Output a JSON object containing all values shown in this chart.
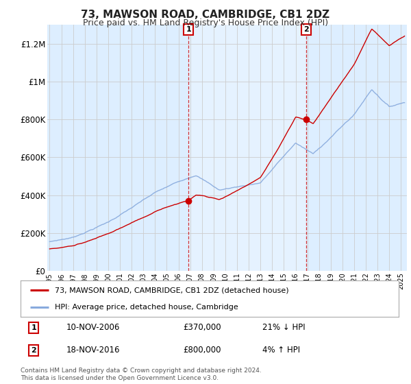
{
  "title": "73, MAWSON ROAD, CAMBRIDGE, CB1 2DZ",
  "subtitle": "Price paid vs. HM Land Registry's House Price Index (HPI)",
  "background_color": "#ffffff",
  "plot_bg_color": "#ddeeff",
  "ylim": [
    0,
    1300000
  ],
  "yticks": [
    0,
    200000,
    400000,
    600000,
    800000,
    1000000,
    1200000
  ],
  "ytick_labels": [
    "£0",
    "£200K",
    "£400K",
    "£600K",
    "£800K",
    "£1M",
    "£1.2M"
  ],
  "sale1_date_label": "10-NOV-2006",
  "sale1_price": 370000,
  "sale1_price_label": "£370,000",
  "sale1_hpi_label": "21% ↓ HPI",
  "sale1_x": 2006.86,
  "sale2_date_label": "18-NOV-2016",
  "sale2_price": 800000,
  "sale2_price_label": "£800,000",
  "sale2_hpi_label": "4% ↑ HPI",
  "sale2_x": 2016.88,
  "red_line_color": "#cc0000",
  "blue_line_color": "#88aadd",
  "marker_color": "#cc0000",
  "annotation_box_color": "#cc0000",
  "grid_color": "#cccccc",
  "legend_label_red": "73, MAWSON ROAD, CAMBRIDGE, CB1 2DZ (detached house)",
  "legend_label_blue": "HPI: Average price, detached house, Cambridge",
  "footnote": "Contains HM Land Registry data © Crown copyright and database right 2024.\nThis data is licensed under the Open Government Licence v3.0.",
  "xstart": 1994.8,
  "xend": 2025.5
}
